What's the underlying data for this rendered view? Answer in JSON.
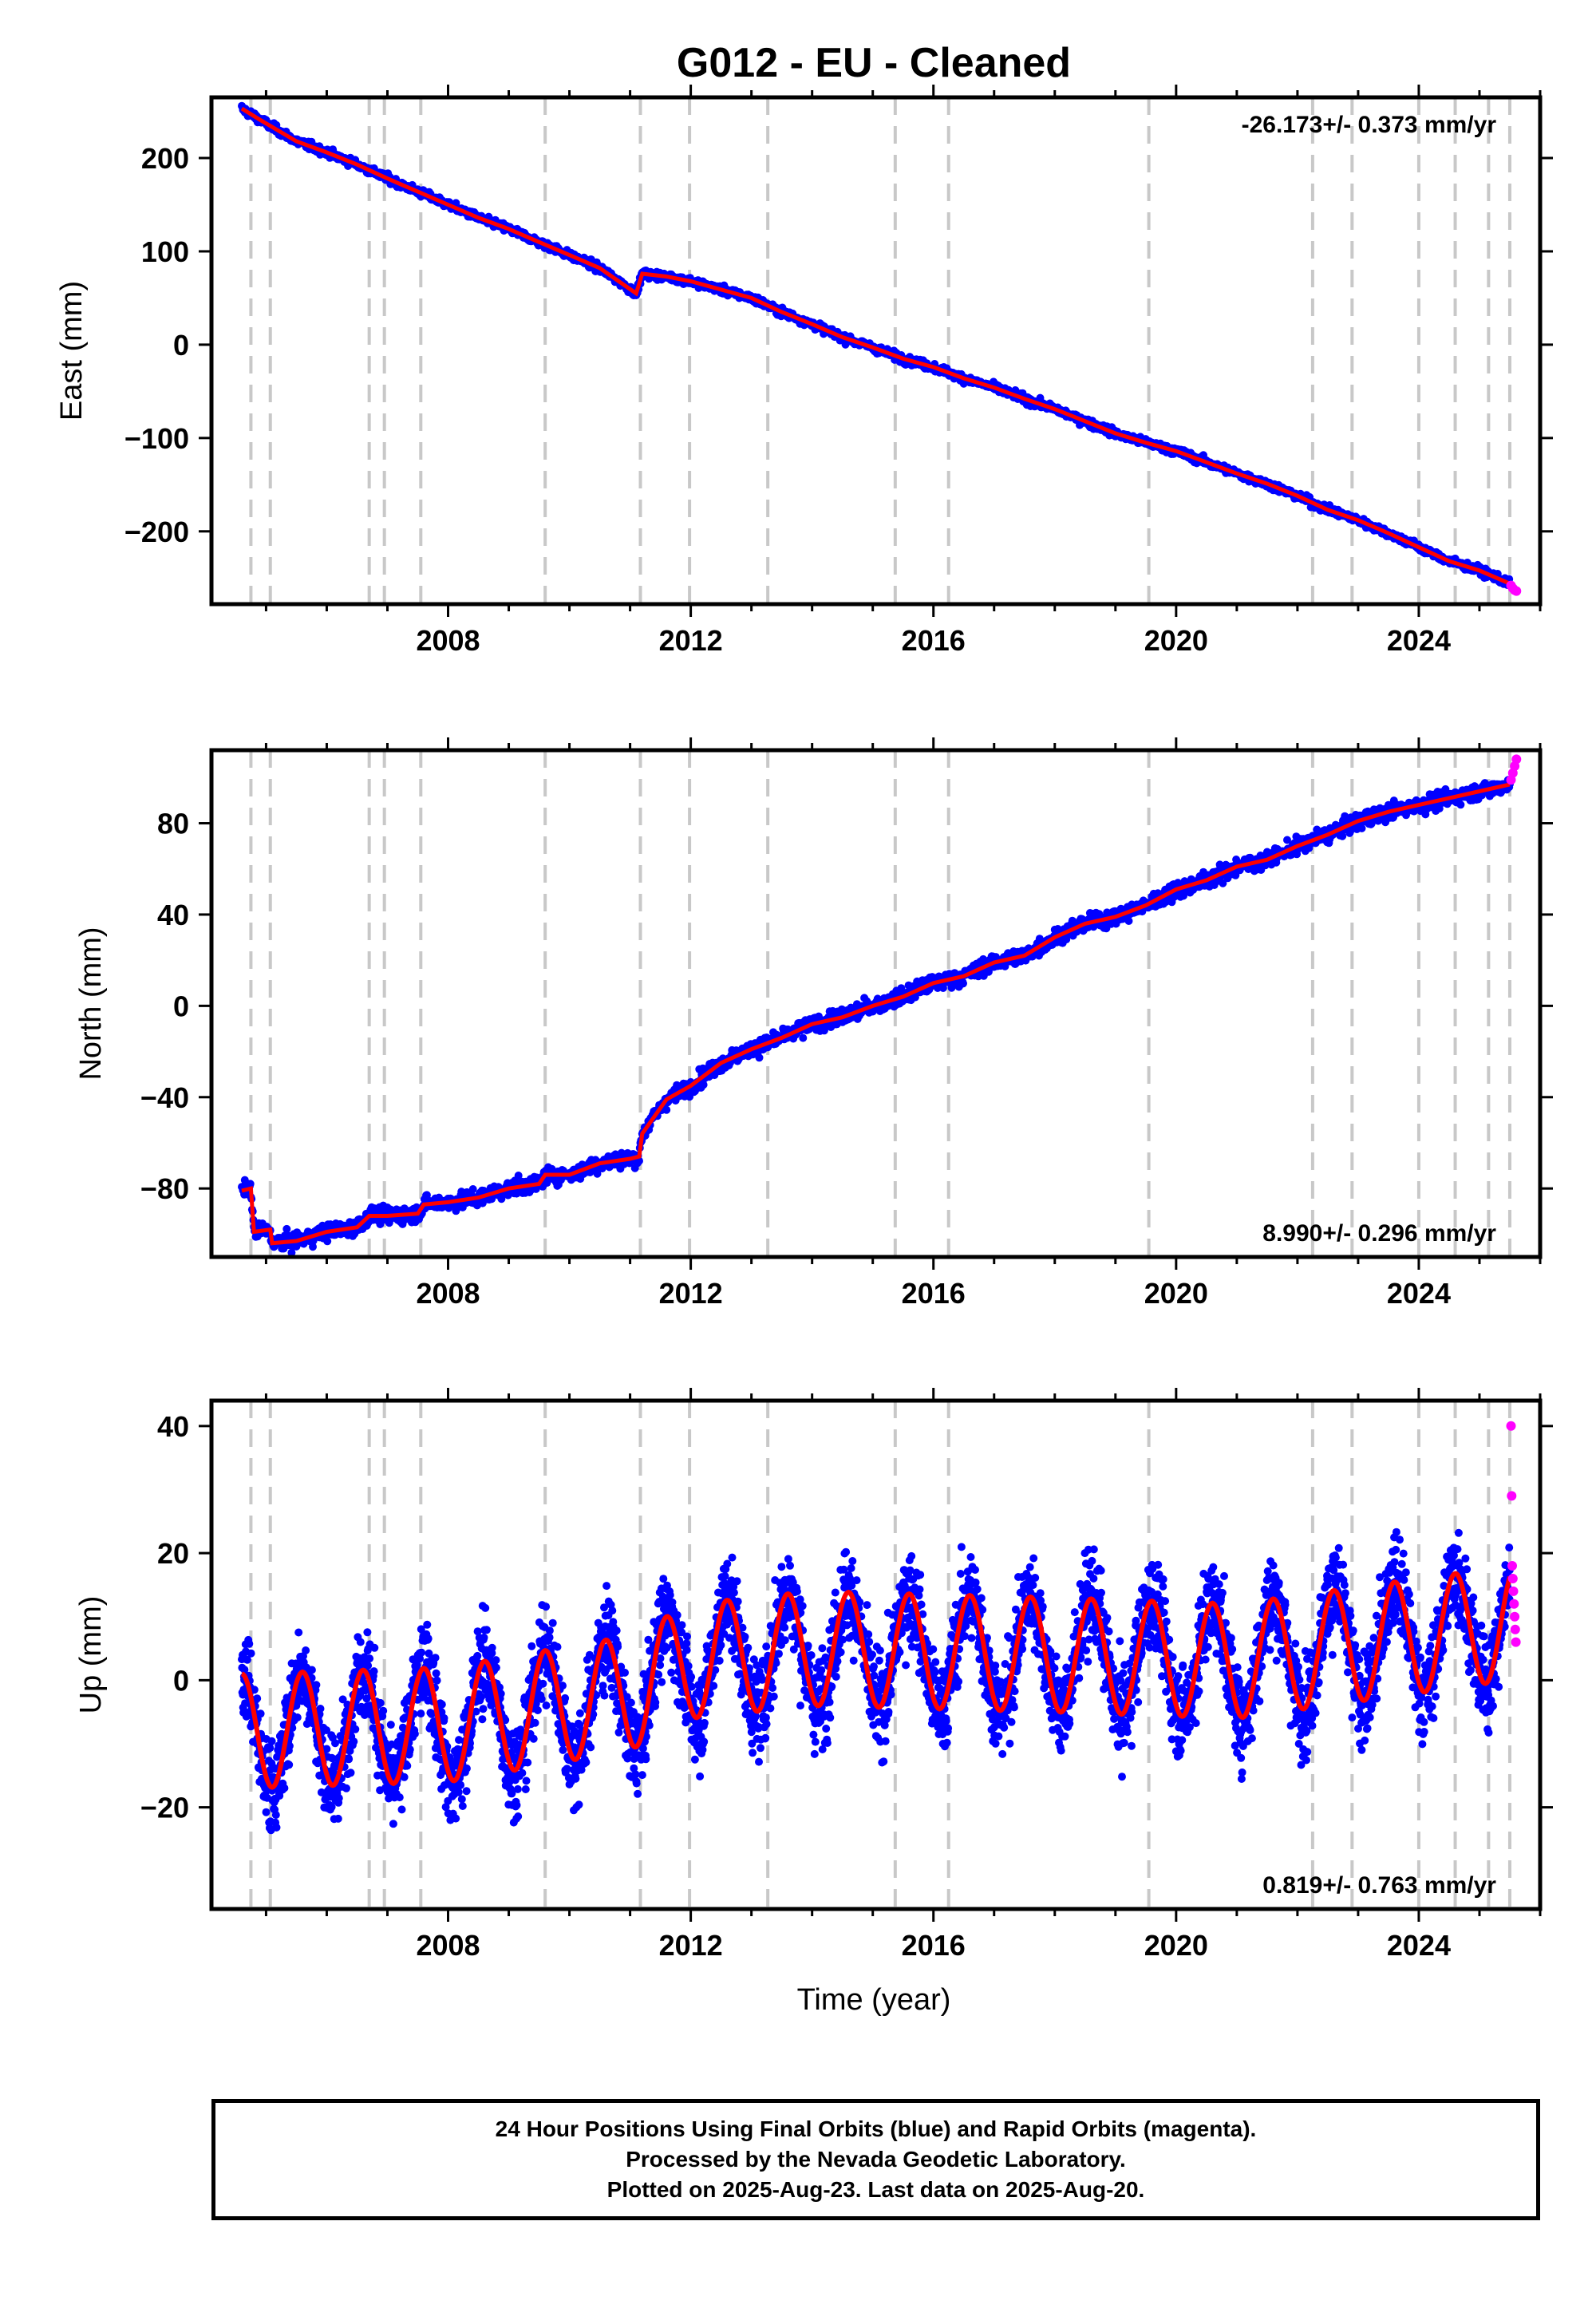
{
  "title": "G012  - EU - Cleaned",
  "colors": {
    "final": "#0000ff",
    "rapid": "#ff00ff",
    "model": "#ff0000",
    "event": "#c8c8c8",
    "frame": "#000000"
  },
  "xlabel": "Time (year)",
  "footer": {
    "line1": "24 Hour Positions Using Final Orbits (blue) and Rapid Orbits (magenta).",
    "line2": "Processed by the Nevada Geodetic Laboratory.",
    "line3": "Plotted on 2025-Aug-23. Last data on 2025-Aug-20."
  },
  "chart_data": [
    {
      "type": "scatter",
      "ylabel": "East (mm)",
      "rate": "-26.173+/- 0.373 mm/yr",
      "rate_position": "top-right",
      "xlim": [
        2004.1,
        2026.0
      ],
      "ylim": [
        -278,
        265
      ],
      "x_ticks": [
        2008,
        2012,
        2016,
        2020,
        2024
      ],
      "y_ticks": [
        -200,
        -100,
        0,
        100,
        200
      ],
      "event_lines": [
        2004.75,
        2005.07,
        2006.7,
        2006.95,
        2007.55,
        2009.6,
        2011.17,
        2011.98,
        2013.27,
        2015.37,
        2016.25,
        2019.55,
        2022.25,
        2022.9,
        2024.0,
        2024.6,
        2025.15,
        2025.5
      ],
      "series": [
        {
          "name": "Final Orbits (blue)",
          "points": [
            [
              2004.6,
              253
            ],
            [
              2004.9,
              241
            ],
            [
              2005.5,
              218
            ],
            [
              2006.0,
              206
            ],
            [
              2006.5,
              193
            ],
            [
              2007.0,
              178
            ],
            [
              2007.5,
              164
            ],
            [
              2008.0,
              150
            ],
            [
              2008.5,
              136
            ],
            [
              2009.0,
              124
            ],
            [
              2009.5,
              110
            ],
            [
              2010.0,
              96
            ],
            [
              2010.5,
              82
            ],
            [
              2011.1,
              55
            ],
            [
              2011.2,
              76
            ],
            [
              2011.6,
              73
            ],
            [
              2012.0,
              68
            ],
            [
              2012.5,
              59
            ],
            [
              2013.0,
              50
            ],
            [
              2013.5,
              35
            ],
            [
              2014.0,
              22
            ],
            [
              2014.5,
              8
            ],
            [
              2015.0,
              -3
            ],
            [
              2015.5,
              -15
            ],
            [
              2016.0,
              -24
            ],
            [
              2016.5,
              -36
            ],
            [
              2017.0,
              -46
            ],
            [
              2017.5,
              -58
            ],
            [
              2018.0,
              -69
            ],
            [
              2018.5,
              -82
            ],
            [
              2019.0,
              -95
            ],
            [
              2019.5,
              -105
            ],
            [
              2020.0,
              -114
            ],
            [
              2020.5,
              -126
            ],
            [
              2021.0,
              -138
            ],
            [
              2021.5,
              -149
            ],
            [
              2022.0,
              -162
            ],
            [
              2022.5,
              -177
            ],
            [
              2023.0,
              -188
            ],
            [
              2023.5,
              -202
            ],
            [
              2024.0,
              -217
            ],
            [
              2024.5,
              -232
            ],
            [
              2025.0,
              -242
            ],
            [
              2025.5,
              -256
            ]
          ],
          "scatter_mm": 3
        },
        {
          "name": "Rapid Orbits (magenta)",
          "points": [
            [
              2025.52,
              -258
            ],
            [
              2025.55,
              -261
            ],
            [
              2025.58,
              -263
            ],
            [
              2025.61,
              -264
            ]
          ],
          "scatter_mm": 2
        }
      ]
    },
    {
      "type": "scatter",
      "ylabel": "North (mm)",
      "rate": "8.990+/- 0.296 mm/yr",
      "rate_position": "bottom-right",
      "xlim": [
        2004.1,
        2026.0
      ],
      "ylim": [
        -110,
        112
      ],
      "x_ticks": [
        2008,
        2012,
        2016,
        2020,
        2024
      ],
      "y_ticks": [
        -80,
        -40,
        0,
        40,
        80
      ],
      "event_lines": [
        2004.75,
        2005.07,
        2006.7,
        2006.95,
        2007.55,
        2009.6,
        2011.17,
        2011.98,
        2013.27,
        2015.37,
        2016.25,
        2019.55,
        2022.25,
        2022.9,
        2024.0,
        2024.6,
        2025.15,
        2025.5
      ],
      "series": [
        {
          "name": "Final Orbits (blue)",
          "points": [
            [
              2004.6,
              -81
            ],
            [
              2004.75,
              -80
            ],
            [
              2004.8,
              -99
            ],
            [
              2005.07,
              -98
            ],
            [
              2005.1,
              -104
            ],
            [
              2005.5,
              -103
            ],
            [
              2006.0,
              -99
            ],
            [
              2006.5,
              -97
            ],
            [
              2006.7,
              -92
            ],
            [
              2007.0,
              -92
            ],
            [
              2007.5,
              -91
            ],
            [
              2007.6,
              -87
            ],
            [
              2008.0,
              -86
            ],
            [
              2008.5,
              -84
            ],
            [
              2009.0,
              -80
            ],
            [
              2009.5,
              -78
            ],
            [
              2009.6,
              -74
            ],
            [
              2010.0,
              -74
            ],
            [
              2010.5,
              -69
            ],
            [
              2011.0,
              -67
            ],
            [
              2011.15,
              -66
            ],
            [
              2011.2,
              -56
            ],
            [
              2011.6,
              -41
            ],
            [
              2012.0,
              -35
            ],
            [
              2012.5,
              -25
            ],
            [
              2013.0,
              -19
            ],
            [
              2013.5,
              -14
            ],
            [
              2014.0,
              -8
            ],
            [
              2014.5,
              -5
            ],
            [
              2015.0,
              0
            ],
            [
              2015.5,
              4
            ],
            [
              2016.0,
              10
            ],
            [
              2016.5,
              13
            ],
            [
              2017.0,
              19
            ],
            [
              2017.5,
              22
            ],
            [
              2018.0,
              30
            ],
            [
              2018.5,
              36
            ],
            [
              2019.0,
              39
            ],
            [
              2019.5,
              44
            ],
            [
              2020.0,
              51
            ],
            [
              2020.5,
              55
            ],
            [
              2021.0,
              61
            ],
            [
              2021.5,
              64
            ],
            [
              2022.0,
              70
            ],
            [
              2022.5,
              75
            ],
            [
              2023.0,
              81
            ],
            [
              2023.5,
              85
            ],
            [
              2024.0,
              88
            ],
            [
              2024.5,
              91
            ],
            [
              2025.0,
              94
            ],
            [
              2025.5,
              97
            ]
          ],
          "scatter_mm": 2.5
        },
        {
          "name": "Rapid Orbits (magenta)",
          "points": [
            [
              2025.52,
              99
            ],
            [
              2025.55,
              102
            ],
            [
              2025.58,
              105
            ],
            [
              2025.61,
              108
            ]
          ],
          "scatter_mm": 2
        }
      ]
    },
    {
      "type": "scatter",
      "ylabel": "Up (mm)",
      "rate": "0.819+/- 0.763 mm/yr",
      "rate_position": "bottom-right",
      "xlim": [
        2004.1,
        2026.0
      ],
      "ylim": [
        -36,
        44
      ],
      "x_ticks": [
        2008,
        2012,
        2016,
        2020,
        2024
      ],
      "y_ticks": [
        -20,
        0,
        20,
        40
      ],
      "event_lines": [
        2004.75,
        2005.07,
        2006.7,
        2006.95,
        2007.55,
        2009.6,
        2011.17,
        2011.98,
        2013.27,
        2015.37,
        2016.25,
        2019.55,
        2022.25,
        2022.9,
        2024.0,
        2024.6,
        2025.15,
        2025.5
      ],
      "series": [
        {
          "name": "Final Orbits (blue)",
          "seasonal": {
            "baseline": [
              [
                2004.6,
                -8
              ],
              [
                2008.0,
                -7
              ],
              [
                2011.0,
                -2
              ],
              [
                2012.0,
                3
              ],
              [
                2014.0,
                5
              ],
              [
                2018.0,
                4
              ],
              [
                2021.0,
                3
              ],
              [
                2025.5,
                9
              ]
            ],
            "amplitude": 9
          },
          "scatter_mm": 8
        },
        {
          "name": "Rapid Orbits (magenta)",
          "points": [
            [
              2025.52,
              40
            ],
            [
              2025.53,
              29
            ],
            [
              2025.54,
              18
            ],
            [
              2025.55,
              16
            ],
            [
              2025.56,
              14
            ],
            [
              2025.57,
              12
            ],
            [
              2025.58,
              10
            ],
            [
              2025.59,
              8
            ],
            [
              2025.6,
              6
            ]
          ],
          "scatter_mm": 0
        }
      ]
    }
  ]
}
